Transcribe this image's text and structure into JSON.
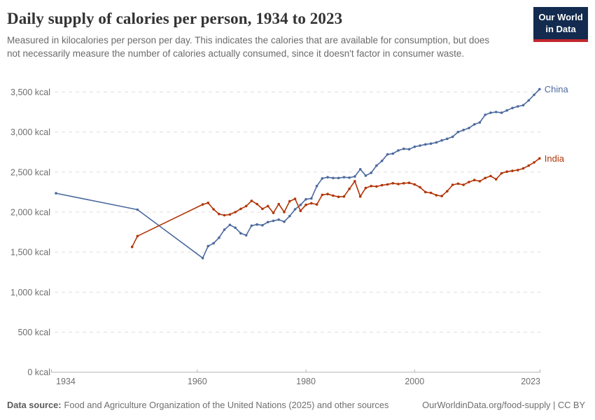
{
  "header": {
    "title": "Daily supply of calories per person, 1934 to 2023",
    "subtitle": "Measured in kilocalories per person per day. This indicates the calories that are available for consumption, but does not necessarily measure the number of calories actually consumed, since it doesn't factor in consumer waste.",
    "logo": {
      "line1": "Our World",
      "line2": "in Data",
      "bg_color": "#122b4e",
      "accent_color": "#c0282e"
    }
  },
  "chart_data": {
    "type": "line",
    "title": "Daily supply of calories per person, 1934 to 2023",
    "xlabel": "",
    "ylabel": "kcal per person per day",
    "x_range": [
      1934,
      2023
    ],
    "ylim": [
      0,
      3500
    ],
    "grid": "horizontal dashed",
    "legend_position": "end-of-line labels",
    "x_ticks": [
      1934,
      1960,
      1980,
      2000,
      2023
    ],
    "y_ticks": [
      0,
      500,
      1000,
      1500,
      2000,
      2500,
      3000,
      3500
    ],
    "y_tick_labels": [
      "0 kcal",
      "500 kcal",
      "1,000 kcal",
      "1,500 kcal",
      "2,000 kcal",
      "2,500 kcal",
      "3,000 kcal",
      "3,500 kcal"
    ],
    "series": [
      {
        "name": "China",
        "color": "#4c6a9e",
        "points": [
          [
            1934,
            2235
          ],
          [
            1949,
            2030
          ],
          [
            1961,
            1425
          ],
          [
            1962,
            1575
          ],
          [
            1963,
            1610
          ],
          [
            1964,
            1680
          ],
          [
            1965,
            1780
          ],
          [
            1966,
            1840
          ],
          [
            1967,
            1805
          ],
          [
            1968,
            1735
          ],
          [
            1969,
            1710
          ],
          [
            1970,
            1830
          ],
          [
            1971,
            1845
          ],
          [
            1972,
            1835
          ],
          [
            1973,
            1875
          ],
          [
            1974,
            1890
          ],
          [
            1975,
            1905
          ],
          [
            1976,
            1880
          ],
          [
            1977,
            1950
          ],
          [
            1978,
            2035
          ],
          [
            1979,
            2090
          ],
          [
            1980,
            2160
          ],
          [
            1981,
            2170
          ],
          [
            1982,
            2325
          ],
          [
            1983,
            2420
          ],
          [
            1984,
            2435
          ],
          [
            1985,
            2425
          ],
          [
            1986,
            2425
          ],
          [
            1987,
            2435
          ],
          [
            1988,
            2430
          ],
          [
            1989,
            2445
          ],
          [
            1990,
            2535
          ],
          [
            1991,
            2455
          ],
          [
            1992,
            2490
          ],
          [
            1993,
            2580
          ],
          [
            1994,
            2640
          ],
          [
            1995,
            2720
          ],
          [
            1996,
            2730
          ],
          [
            1997,
            2770
          ],
          [
            1998,
            2790
          ],
          [
            1999,
            2785
          ],
          [
            2000,
            2815
          ],
          [
            2001,
            2830
          ],
          [
            2002,
            2845
          ],
          [
            2003,
            2855
          ],
          [
            2004,
            2870
          ],
          [
            2005,
            2895
          ],
          [
            2006,
            2915
          ],
          [
            2007,
            2940
          ],
          [
            2008,
            3000
          ],
          [
            2009,
            3025
          ],
          [
            2010,
            3050
          ],
          [
            2011,
            3095
          ],
          [
            2012,
            3120
          ],
          [
            2013,
            3215
          ],
          [
            2014,
            3240
          ],
          [
            2015,
            3250
          ],
          [
            2016,
            3240
          ],
          [
            2017,
            3270
          ],
          [
            2018,
            3300
          ],
          [
            2019,
            3320
          ],
          [
            2020,
            3335
          ],
          [
            2021,
            3395
          ],
          [
            2022,
            3465
          ],
          [
            2023,
            3535
          ]
        ]
      },
      {
        "name": "India",
        "color": "#b13507",
        "points": [
          [
            1948,
            1565
          ],
          [
            1949,
            1700
          ],
          [
            1961,
            2095
          ],
          [
            1962,
            2115
          ],
          [
            1963,
            2035
          ],
          [
            1964,
            1975
          ],
          [
            1965,
            1960
          ],
          [
            1966,
            1970
          ],
          [
            1967,
            2000
          ],
          [
            1968,
            2040
          ],
          [
            1969,
            2075
          ],
          [
            1970,
            2140
          ],
          [
            1971,
            2100
          ],
          [
            1972,
            2040
          ],
          [
            1973,
            2075
          ],
          [
            1974,
            1990
          ],
          [
            1975,
            2100
          ],
          [
            1976,
            2000
          ],
          [
            1977,
            2135
          ],
          [
            1978,
            2165
          ],
          [
            1979,
            2015
          ],
          [
            1980,
            2090
          ],
          [
            1981,
            2110
          ],
          [
            1982,
            2095
          ],
          [
            1983,
            2215
          ],
          [
            1984,
            2225
          ],
          [
            1985,
            2205
          ],
          [
            1986,
            2190
          ],
          [
            1987,
            2195
          ],
          [
            1988,
            2290
          ],
          [
            1989,
            2385
          ],
          [
            1990,
            2195
          ],
          [
            1991,
            2300
          ],
          [
            1992,
            2325
          ],
          [
            1993,
            2320
          ],
          [
            1994,
            2335
          ],
          [
            1995,
            2345
          ],
          [
            1996,
            2360
          ],
          [
            1997,
            2350
          ],
          [
            1998,
            2360
          ],
          [
            1999,
            2365
          ],
          [
            2000,
            2345
          ],
          [
            2001,
            2310
          ],
          [
            2002,
            2250
          ],
          [
            2003,
            2240
          ],
          [
            2004,
            2210
          ],
          [
            2005,
            2200
          ],
          [
            2006,
            2260
          ],
          [
            2007,
            2340
          ],
          [
            2008,
            2355
          ],
          [
            2009,
            2340
          ],
          [
            2010,
            2375
          ],
          [
            2011,
            2400
          ],
          [
            2012,
            2385
          ],
          [
            2013,
            2425
          ],
          [
            2014,
            2450
          ],
          [
            2015,
            2410
          ],
          [
            2016,
            2485
          ],
          [
            2017,
            2505
          ],
          [
            2018,
            2515
          ],
          [
            2019,
            2525
          ],
          [
            2020,
            2545
          ],
          [
            2021,
            2580
          ],
          [
            2022,
            2620
          ],
          [
            2023,
            2670
          ]
        ]
      }
    ]
  },
  "footer": {
    "datasource_label": "Data source:",
    "datasource_text": "Food and Agriculture Organization of the United Nations (2025) and other sources",
    "credit": "OurWorldinData.org/food-supply | CC BY"
  }
}
